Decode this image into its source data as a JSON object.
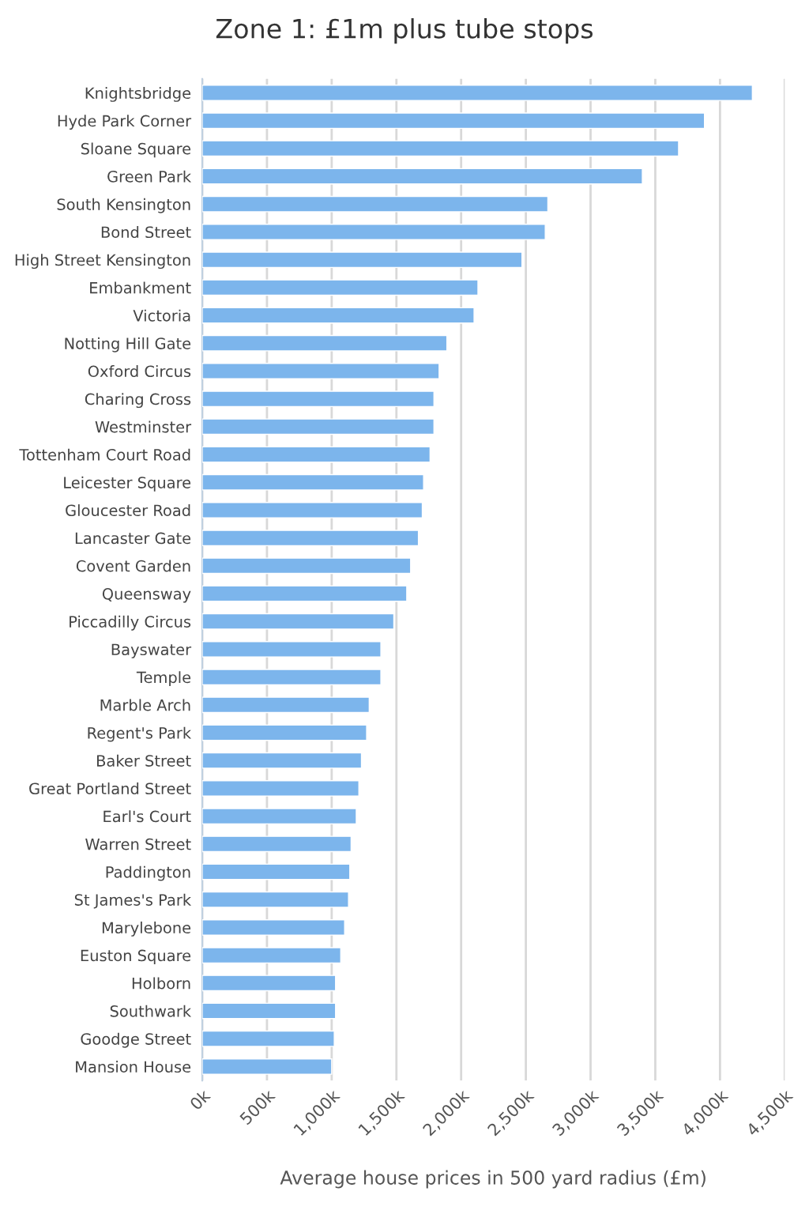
{
  "chart_data": {
    "type": "bar",
    "orientation": "horizontal",
    "title": "Zone 1: £1m plus tube stops",
    "xlabel": "Average house prices in 500 yard radius (£m)",
    "categories": [
      "Knightsbridge",
      "Hyde Park Corner",
      "Sloane Square",
      "Green Park",
      "South Kensington",
      "Bond Street",
      "High Street Kensington",
      "Embankment",
      "Victoria",
      "Notting Hill Gate",
      "Oxford Circus",
      "Charing Cross",
      "Westminster",
      "Tottenham Court Road",
      "Leicester Square",
      "Gloucester Road",
      "Lancaster Gate",
      "Covent Garden",
      "Queensway",
      "Piccadilly Circus",
      "Bayswater",
      "Temple",
      "Marble Arch",
      "Regent's Park",
      "Baker Street",
      "Great Portland Street",
      "Earl's Court",
      "Warren Street",
      "Paddington",
      "St James's Park",
      "Marylebone",
      "Euston Square",
      "Holborn",
      "Southwark",
      "Goodge Street",
      "Mansion House"
    ],
    "values": [
      4250,
      3880,
      3680,
      3400,
      2670,
      2650,
      2470,
      2130,
      2100,
      1890,
      1830,
      1790,
      1790,
      1760,
      1710,
      1700,
      1670,
      1610,
      1580,
      1480,
      1380,
      1380,
      1290,
      1270,
      1230,
      1210,
      1190,
      1150,
      1140,
      1130,
      1100,
      1070,
      1030,
      1030,
      1020,
      1000
    ],
    "color": "#7cb5ec",
    "xlim": [
      0,
      4500
    ],
    "xticks": [
      {
        "value": 0,
        "label": "0k"
      },
      {
        "value": 500,
        "label": "500k"
      },
      {
        "value": 1000,
        "label": "1,000k"
      },
      {
        "value": 1500,
        "label": "1,500k"
      },
      {
        "value": 2000,
        "label": "2,000k"
      },
      {
        "value": 2500,
        "label": "2,500k"
      },
      {
        "value": 3000,
        "label": "3,000k"
      },
      {
        "value": 3500,
        "label": "3,500k"
      },
      {
        "value": 4000,
        "label": "4,000k"
      },
      {
        "value": 4500,
        "label": "4,500k"
      }
    ],
    "grid": "x"
  }
}
